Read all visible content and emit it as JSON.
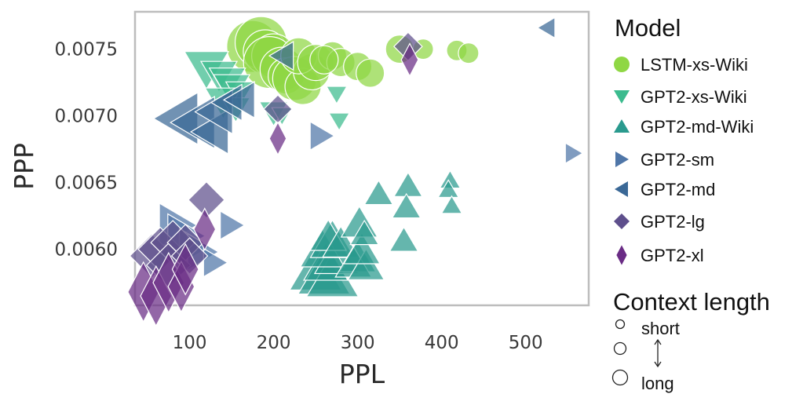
{
  "chart_data": {
    "type": "scatter",
    "xlabel": "PPL",
    "ylabel": "PPP",
    "xlim": [
      35,
      575
    ],
    "ylim": [
      0.00558,
      0.00778
    ],
    "x_ticks": [
      {
        "value": 100,
        "label": "100"
      },
      {
        "value": 200,
        "label": "200"
      },
      {
        "value": 300,
        "label": "300"
      },
      {
        "value": 400,
        "label": "400"
      },
      {
        "value": 500,
        "label": "500"
      }
    ],
    "y_ticks": [
      {
        "value": 0.006,
        "label": "0.0060"
      },
      {
        "value": 0.0065,
        "label": "0.0065"
      },
      {
        "value": 0.007,
        "label": "0.0070"
      },
      {
        "value": 0.0075,
        "label": "0.0075"
      }
    ],
    "grid": false,
    "legend": {
      "title": "Model",
      "placement": "right"
    },
    "size_legend": {
      "title": "Context length",
      "short_label": "short",
      "long_label": "long"
    },
    "series": [
      {
        "name": "LSTM-xs-Wiki",
        "marker": "circle",
        "color": "#8fd744",
        "points": [
          {
            "x": 175,
            "y": 0.00752,
            "s": 5
          },
          {
            "x": 185,
            "y": 0.00755,
            "s": 5
          },
          {
            "x": 190,
            "y": 0.00748,
            "s": 4
          },
          {
            "x": 200,
            "y": 0.00745,
            "s": 4
          },
          {
            "x": 195,
            "y": 0.0074,
            "s": 5
          },
          {
            "x": 210,
            "y": 0.00735,
            "s": 4
          },
          {
            "x": 215,
            "y": 0.0073,
            "s": 3
          },
          {
            "x": 225,
            "y": 0.00728,
            "s": 4
          },
          {
            "x": 235,
            "y": 0.00722,
            "s": 3
          },
          {
            "x": 245,
            "y": 0.00733,
            "s": 3
          },
          {
            "x": 230,
            "y": 0.00745,
            "s": 3
          },
          {
            "x": 250,
            "y": 0.0074,
            "s": 3
          },
          {
            "x": 270,
            "y": 0.00745,
            "s": 2
          },
          {
            "x": 280,
            "y": 0.0074,
            "s": 2
          },
          {
            "x": 300,
            "y": 0.00737,
            "s": 2
          },
          {
            "x": 315,
            "y": 0.00732,
            "s": 2
          },
          {
            "x": 350,
            "y": 0.0075,
            "s": 2
          },
          {
            "x": 378,
            "y": 0.0075,
            "s": 1
          },
          {
            "x": 418,
            "y": 0.00749,
            "s": 1
          },
          {
            "x": 432,
            "y": 0.00747,
            "s": 1
          },
          {
            "x": 260,
            "y": 0.00742,
            "s": 2
          }
        ]
      },
      {
        "name": "GPT2-xs-Wiki",
        "marker": "triangle-down",
        "color": "#3bbb8e",
        "points": [
          {
            "x": 120,
            "y": 0.00735,
            "s": 4
          },
          {
            "x": 135,
            "y": 0.0073,
            "s": 3
          },
          {
            "x": 145,
            "y": 0.00725,
            "s": 3
          },
          {
            "x": 150,
            "y": 0.0072,
            "s": 3
          },
          {
            "x": 160,
            "y": 0.00717,
            "s": 2
          },
          {
            "x": 140,
            "y": 0.0071,
            "s": 3
          },
          {
            "x": 155,
            "y": 0.00705,
            "s": 2
          },
          {
            "x": 200,
            "y": 0.00702,
            "s": 2
          },
          {
            "x": 210,
            "y": 0.007,
            "s": 1
          },
          {
            "x": 275,
            "y": 0.00716,
            "s": 1
          },
          {
            "x": 278,
            "y": 0.00696,
            "s": 1
          }
        ]
      },
      {
        "name": "GPT2-md-Wiki",
        "marker": "triangle-up",
        "color": "#2a9a8e",
        "points": [
          {
            "x": 250,
            "y": 0.00585,
            "s": 5
          },
          {
            "x": 260,
            "y": 0.00582,
            "s": 5
          },
          {
            "x": 270,
            "y": 0.0058,
            "s": 5
          },
          {
            "x": 262,
            "y": 0.0059,
            "s": 4
          },
          {
            "x": 275,
            "y": 0.00595,
            "s": 4
          },
          {
            "x": 258,
            "y": 0.006,
            "s": 4
          },
          {
            "x": 270,
            "y": 0.00607,
            "s": 4
          },
          {
            "x": 265,
            "y": 0.0061,
            "s": 3
          },
          {
            "x": 280,
            "y": 0.00605,
            "s": 3
          },
          {
            "x": 300,
            "y": 0.00594,
            "s": 3
          },
          {
            "x": 295,
            "y": 0.0059,
            "s": 3
          },
          {
            "x": 310,
            "y": 0.00588,
            "s": 3
          },
          {
            "x": 305,
            "y": 0.006,
            "s": 3
          },
          {
            "x": 302,
            "y": 0.0062,
            "s": 3
          },
          {
            "x": 308,
            "y": 0.00612,
            "s": 2
          },
          {
            "x": 325,
            "y": 0.00642,
            "s": 2
          },
          {
            "x": 360,
            "y": 0.00648,
            "s": 2
          },
          {
            "x": 358,
            "y": 0.00632,
            "s": 2
          },
          {
            "x": 355,
            "y": 0.00607,
            "s": 2
          },
          {
            "x": 410,
            "y": 0.00652,
            "s": 1
          },
          {
            "x": 408,
            "y": 0.00645,
            "s": 1
          },
          {
            "x": 412,
            "y": 0.00633,
            "s": 1
          }
        ]
      },
      {
        "name": "GPT2-sm",
        "marker": "triangle-right",
        "color": "#4f76a8",
        "points": [
          {
            "x": 85,
            "y": 0.00618,
            "s": 4
          },
          {
            "x": 95,
            "y": 0.0061,
            "s": 4
          },
          {
            "x": 105,
            "y": 0.00602,
            "s": 3
          },
          {
            "x": 115,
            "y": 0.00598,
            "s": 3
          },
          {
            "x": 130,
            "y": 0.0059,
            "s": 2
          },
          {
            "x": 150,
            "y": 0.00618,
            "s": 2
          },
          {
            "x": 257,
            "y": 0.00685,
            "s": 2
          },
          {
            "x": 557,
            "y": 0.00672,
            "s": 1
          }
        ]
      },
      {
        "name": "GPT2-md",
        "marker": "triangle-left",
        "color": "#3a6896",
        "points": [
          {
            "x": 85,
            "y": 0.00698,
            "s": 5
          },
          {
            "x": 105,
            "y": 0.00695,
            "s": 5
          },
          {
            "x": 125,
            "y": 0.00688,
            "s": 4
          },
          {
            "x": 130,
            "y": 0.00703,
            "s": 4
          },
          {
            "x": 145,
            "y": 0.0071,
            "s": 3
          },
          {
            "x": 160,
            "y": 0.00712,
            "s": 3
          },
          {
            "x": 210,
            "y": 0.00745,
            "s": 2
          },
          {
            "x": 525,
            "y": 0.00766,
            "s": 1
          }
        ]
      },
      {
        "name": "GPT2-lg",
        "marker": "diamond",
        "color": "#5e4f8c",
        "points": [
          {
            "x": 55,
            "y": 0.00595,
            "s": 4
          },
          {
            "x": 65,
            "y": 0.006,
            "s": 4
          },
          {
            "x": 80,
            "y": 0.00605,
            "s": 4
          },
          {
            "x": 75,
            "y": 0.00588,
            "s": 4
          },
          {
            "x": 95,
            "y": 0.00605,
            "s": 3
          },
          {
            "x": 100,
            "y": 0.00595,
            "s": 3
          },
          {
            "x": 120,
            "y": 0.00637,
            "s": 3
          },
          {
            "x": 205,
            "y": 0.00705,
            "s": 2
          },
          {
            "x": 360,
            "y": 0.00752,
            "s": 2
          }
        ]
      },
      {
        "name": "GPT2-xl",
        "marker": "thin-diamond",
        "color": "#6a2c85",
        "points": [
          {
            "x": 45,
            "y": 0.00568,
            "s": 5
          },
          {
            "x": 60,
            "y": 0.00565,
            "s": 5
          },
          {
            "x": 75,
            "y": 0.00575,
            "s": 5
          },
          {
            "x": 90,
            "y": 0.00572,
            "s": 4
          },
          {
            "x": 95,
            "y": 0.00585,
            "s": 4
          },
          {
            "x": 118,
            "y": 0.00615,
            "s": 3
          },
          {
            "x": 205,
            "y": 0.00683,
            "s": 2
          },
          {
            "x": 362,
            "y": 0.00742,
            "s": 2
          }
        ]
      }
    ]
  }
}
